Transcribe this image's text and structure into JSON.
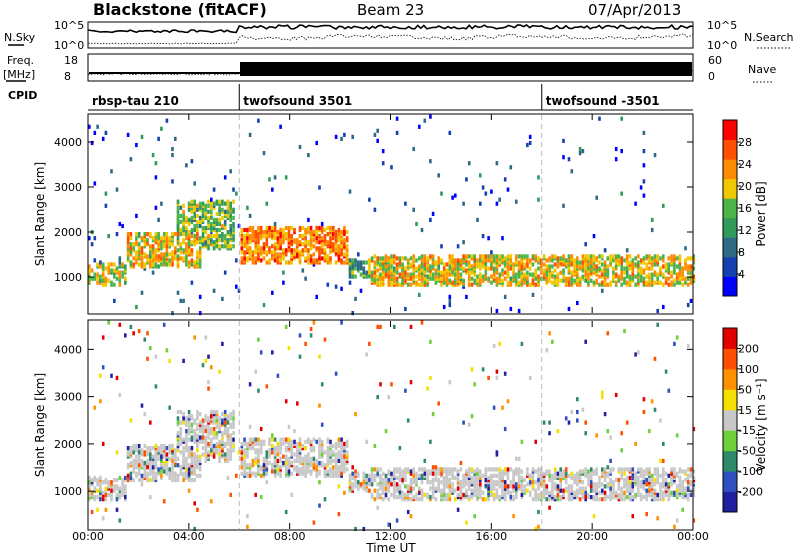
{
  "header": {
    "site": "Blackstone (fitACF)",
    "beam": "Beam 23",
    "date": "07/Apr/2013"
  },
  "strips": {
    "nsky_label": "N.Sky",
    "nsky_ticks": [
      "10^5",
      "10^0"
    ],
    "nsearch_label": "N.Search",
    "nsearch_ticks": [
      "10^5",
      "10^0"
    ],
    "freq_label_1": "Freq.",
    "freq_label_2": "[MHz]",
    "freq_ticks": [
      "18",
      "8"
    ],
    "nave_label": "Nave",
    "nave_ticks": [
      "60",
      "0"
    ],
    "cpid_label": "CPID",
    "cpid_segments": [
      {
        "label": "rbsp-tau 210",
        "start_h": 0
      },
      {
        "label": "twofsound 3501",
        "start_h": 6
      },
      {
        "label": "twofsound -3501",
        "start_h": 18
      }
    ]
  },
  "chart_data": [
    {
      "type": "heatmap",
      "panel": "power",
      "ylabel": "Slant Range [km]",
      "x_range_h": [
        0,
        24
      ],
      "ylim": [
        200,
        4600
      ],
      "y_ticks": [
        1000,
        2000,
        3000,
        4000
      ],
      "colorbar": {
        "label": "Power [dB]",
        "ticks": [
          "28",
          "24",
          "20",
          "16",
          "12",
          "8",
          "4"
        ],
        "colors": [
          "#0000ff",
          "#1540b0",
          "#2e6a86",
          "#2f9a59",
          "#4bb44a",
          "#f0c800",
          "#ff8c00",
          "#ff5000",
          "#ff0000"
        ]
      },
      "echo_bands": [
        {
          "h0": 0.0,
          "h1": 1.5,
          "km0": 800,
          "km1": 1300,
          "dB": 18
        },
        {
          "h0": 1.5,
          "h1": 4.5,
          "km0": 1200,
          "km1": 2000,
          "dB": 20
        },
        {
          "h0": 3.5,
          "h1": 5.8,
          "km0": 1600,
          "km1": 2700,
          "dB": 16
        },
        {
          "h0": 6.0,
          "h1": 10.3,
          "km0": 1300,
          "km1": 2100,
          "dB": 24
        },
        {
          "h0": 10.3,
          "h1": 11.2,
          "km0": 1000,
          "km1": 1400,
          "dB": 14
        },
        {
          "h0": 11.2,
          "h1": 24.0,
          "km0": 800,
          "km1": 1500,
          "dB": 20
        }
      ]
    },
    {
      "type": "heatmap",
      "panel": "velocity",
      "ylabel": "Slant Range [km]",
      "xlabel": "Time UT",
      "x_ticks": [
        "00:00",
        "04:00",
        "08:00",
        "12:00",
        "16:00",
        "20:00",
        "00:00"
      ],
      "x_range_h": [
        0,
        24
      ],
      "ylim": [
        200,
        4600
      ],
      "y_ticks": [
        1000,
        2000,
        3000,
        4000
      ],
      "colorbar": {
        "label": "Velocity [m s⁻¹]",
        "ticks": [
          "200",
          "100",
          "50",
          "15",
          "-15",
          "-50",
          "-100",
          "-200"
        ],
        "colors": [
          "#2020a0",
          "#3050c0",
          "#2e8a6a",
          "#6ecf3a",
          "#c8c8c8",
          "#f4e000",
          "#ff9000",
          "#ff5000",
          "#e00000"
        ]
      }
    }
  ]
}
